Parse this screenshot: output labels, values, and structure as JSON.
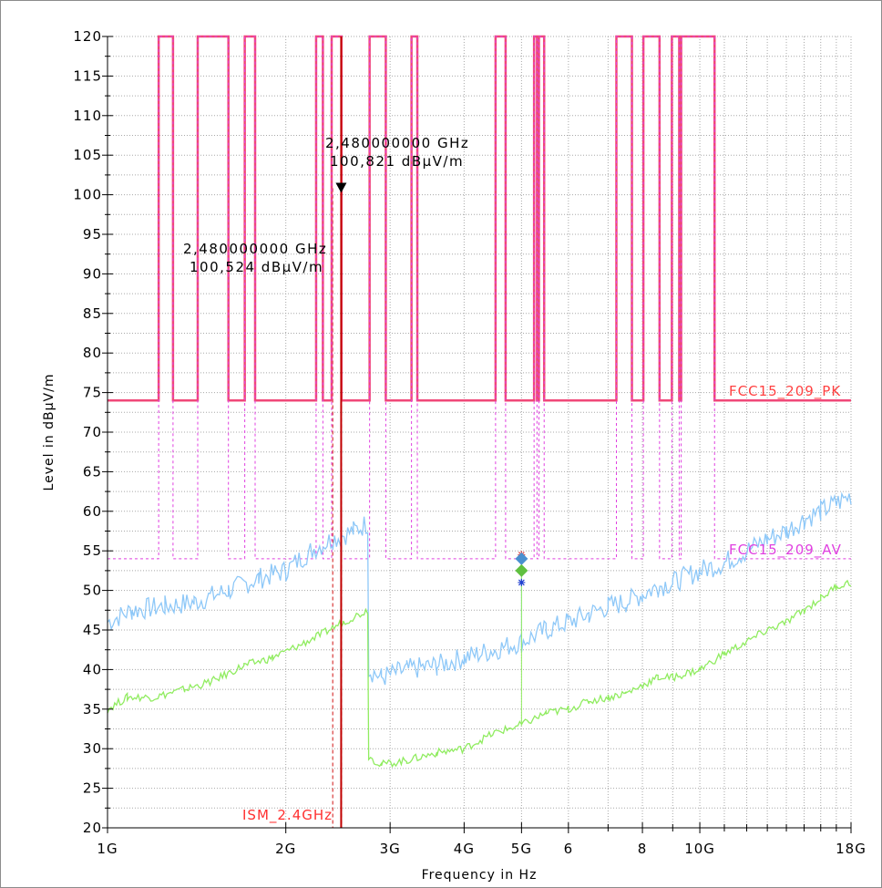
{
  "chart_data": {
    "type": "line",
    "title": "",
    "xlabel": "Frequency in Hz",
    "ylabel": "Level in dBµV/m",
    "xscale": "log",
    "xlim_hz": [
      1000000000,
      18000000000
    ],
    "ylim": [
      20,
      120
    ],
    "grid": true,
    "x_ticks": [
      {
        "value_hz": 1000000000,
        "label": "1G"
      },
      {
        "value_hz": 2000000000,
        "label": "2G"
      },
      {
        "value_hz": 3000000000,
        "label": "3G"
      },
      {
        "value_hz": 4000000000,
        "label": "4G"
      },
      {
        "value_hz": 5000000000,
        "label": "5G"
      },
      {
        "value_hz": 6000000000,
        "label": "6"
      },
      {
        "value_hz": 8000000000,
        "label": "8"
      },
      {
        "value_hz": 10000000000,
        "label": "10G"
      },
      {
        "value_hz": 18000000000,
        "label": "18G"
      }
    ],
    "y_ticks": [
      20,
      25,
      30,
      35,
      40,
      45,
      50,
      55,
      60,
      65,
      70,
      75,
      80,
      85,
      90,
      95,
      100,
      105,
      110,
      115,
      120
    ],
    "limit_lines": [
      {
        "name": "FCC15_209_PK",
        "color": "#f04878",
        "label_color": "#ff4040",
        "level": 74,
        "segments_ghz": [
          [
            1.0,
            1.22
          ],
          [
            1.29,
            1.42
          ],
          [
            1.6,
            1.705
          ],
          [
            1.775,
            2.25
          ],
          [
            2.31,
            2.39
          ],
          [
            2.483,
            2.77
          ],
          [
            2.95,
            3.26
          ],
          [
            3.335,
            4.52
          ],
          [
            4.7,
            5.25
          ],
          [
            5.31,
            5.35
          ],
          [
            5.46,
            7.23
          ],
          [
            7.68,
            8.03
          ],
          [
            8.55,
            8.97
          ],
          [
            9.23,
            9.3
          ],
          [
            10.59,
            18.0
          ]
        ]
      },
      {
        "name": "FCC15_209_AV",
        "color": "#e040e0",
        "label_color": "#e040e0",
        "level": 54,
        "segments_ghz": [
          [
            1.0,
            1.22
          ],
          [
            1.29,
            1.42
          ],
          [
            1.6,
            1.705
          ],
          [
            1.775,
            2.25
          ],
          [
            2.31,
            2.39
          ],
          [
            2.483,
            2.77
          ],
          [
            2.95,
            3.26
          ],
          [
            3.335,
            4.52
          ],
          [
            4.7,
            5.25
          ],
          [
            5.31,
            5.35
          ],
          [
            5.46,
            7.23
          ],
          [
            7.68,
            8.03
          ],
          [
            8.55,
            8.97
          ],
          [
            9.23,
            9.3
          ],
          [
            10.59,
            18.0
          ]
        ]
      }
    ],
    "restricted_band_label": "ISM_2.4GHz",
    "restricted_band_ghz": [
      2.4,
      2.4835
    ],
    "series": [
      {
        "name": "",
        "color": "#8ec8f8",
        "points": [
          [
            1.0,
            46
          ],
          [
            1.1,
            47.5
          ],
          [
            1.25,
            48
          ],
          [
            1.4,
            48.5
          ],
          [
            1.6,
            50
          ],
          [
            1.8,
            51.5
          ],
          [
            2.0,
            52.5
          ],
          [
            2.2,
            55
          ],
          [
            2.4,
            56.5
          ],
          [
            2.6,
            57.5
          ],
          [
            2.75,
            58.5
          ],
          [
            2.76,
            40
          ],
          [
            2.9,
            39
          ],
          [
            3.2,
            40
          ],
          [
            3.6,
            40.5
          ],
          [
            4.0,
            41.5
          ],
          [
            4.5,
            42.5
          ],
          [
            5.0,
            43.5
          ],
          [
            5.5,
            45
          ],
          [
            6.0,
            46
          ],
          [
            6.5,
            47
          ],
          [
            7.0,
            48
          ],
          [
            7.5,
            48.5
          ],
          [
            8.0,
            49.5
          ],
          [
            8.5,
            50.5
          ],
          [
            9.0,
            51
          ],
          [
            10.0,
            52.5
          ],
          [
            11.0,
            53.5
          ],
          [
            12.0,
            55
          ],
          [
            13.0,
            56.5
          ],
          [
            14.0,
            57.5
          ],
          [
            15.0,
            59
          ],
          [
            16.0,
            60
          ],
          [
            17.0,
            61
          ],
          [
            18.0,
            62
          ]
        ]
      },
      {
        "name": "",
        "color": "#90ec60",
        "points": [
          [
            1.0,
            35
          ],
          [
            1.08,
            36.5
          ],
          [
            1.2,
            36.5
          ],
          [
            1.35,
            37.5
          ],
          [
            1.5,
            38.5
          ],
          [
            1.7,
            40.5
          ],
          [
            1.9,
            41.5
          ],
          [
            2.1,
            43
          ],
          [
            2.3,
            44.5
          ],
          [
            2.5,
            46
          ],
          [
            2.75,
            47.5
          ],
          [
            2.76,
            29
          ],
          [
            2.9,
            28
          ],
          [
            3.2,
            28.5
          ],
          [
            3.6,
            29.5
          ],
          [
            4.0,
            30
          ],
          [
            4.5,
            32
          ],
          [
            5.0,
            33
          ],
          [
            5.5,
            34.5
          ],
          [
            6.0,
            35
          ],
          [
            6.5,
            36
          ],
          [
            7.0,
            36.5
          ],
          [
            7.5,
            37
          ],
          [
            8.0,
            38
          ],
          [
            8.5,
            39
          ],
          [
            9.0,
            39
          ],
          [
            10.0,
            40
          ],
          [
            11.0,
            42
          ],
          [
            12.0,
            43.5
          ],
          [
            13.0,
            45
          ],
          [
            14.0,
            46
          ],
          [
            15.0,
            47.5
          ],
          [
            16.0,
            49
          ],
          [
            17.0,
            50.5
          ],
          [
            18.0,
            51
          ]
        ]
      }
    ],
    "markers": [
      {
        "freq_text": "2,480000000 GHz",
        "level_text": "100,821 dBµV/m",
        "freq_ghz": 2.48,
        "level": 100.821,
        "symbol": "triangle-down"
      },
      {
        "freq_text": "2,480000000 GHz",
        "level_text": "100,524 dBµV/m",
        "freq_ghz": 2.48,
        "level": 100.524,
        "symbol": "none"
      }
    ],
    "points_5ghz": [
      {
        "freq_ghz": 5.0,
        "level": 54.5,
        "symbol": "star",
        "color": "#e04040"
      },
      {
        "freq_ghz": 5.0,
        "level": 54.0,
        "symbol": "diamond",
        "color": "#4a90d0"
      },
      {
        "freq_ghz": 5.0,
        "level": 52.5,
        "symbol": "diamond",
        "color": "#60c040"
      },
      {
        "freq_ghz": 5.0,
        "level": 51.0,
        "symbol": "star",
        "color": "#2040d0"
      }
    ],
    "signal_line_color": "#c00000"
  }
}
